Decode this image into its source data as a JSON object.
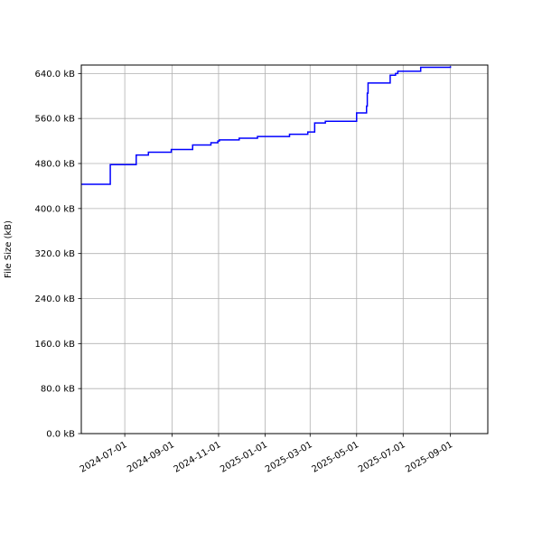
{
  "chart_data": {
    "type": "line",
    "title": "",
    "xlabel": "",
    "ylabel": "File Size (kB)",
    "ylim": [
      0,
      655
    ],
    "xlim": [
      "2024-05-05",
      "2025-10-20"
    ],
    "grid": true,
    "y_ticks": [
      0,
      80,
      160,
      240,
      320,
      400,
      480,
      560,
      640
    ],
    "y_tick_labels": [
      "0.0 kB",
      "80.0 kB",
      "160.0 kB",
      "240.0 kB",
      "320.0 kB",
      "400.0 kB",
      "480.0 kB",
      "560.0 kB",
      "640.0 kB"
    ],
    "x_ticks": [
      "2024-07-01",
      "2024-09-01",
      "2024-11-01",
      "2025-01-01",
      "2025-03-01",
      "2025-05-01",
      "2025-07-01",
      "2025-09-01"
    ],
    "x_tick_labels": [
      "2024-07-01",
      "2024-09-01",
      "2024-11-01",
      "2025-01-01",
      "2025-03-01",
      "2025-05-01",
      "2025-07-01",
      "2025-09-01"
    ],
    "series": [
      {
        "color": "#0000ff",
        "step": true,
        "x": [
          "2024-05-05",
          "2024-06-12",
          "2024-07-16",
          "2024-08-01",
          "2024-08-31",
          "2024-09-28",
          "2024-10-22",
          "2024-10-31",
          "2024-11-02",
          "2024-11-28",
          "2024-12-22",
          "2025-02-02",
          "2025-02-26",
          "2025-03-07",
          "2025-03-21",
          "2025-05-01",
          "2025-05-14",
          "2025-05-15",
          "2025-05-16",
          "2025-06-14",
          "2025-06-21",
          "2025-06-24",
          "2025-07-24",
          "2025-09-01"
        ],
        "y": [
          443,
          478,
          495,
          500,
          505,
          513,
          517,
          520,
          522,
          525,
          528,
          532,
          536,
          552,
          555,
          570,
          582,
          605,
          623,
          637,
          640,
          644,
          651,
          653
        ]
      }
    ]
  }
}
